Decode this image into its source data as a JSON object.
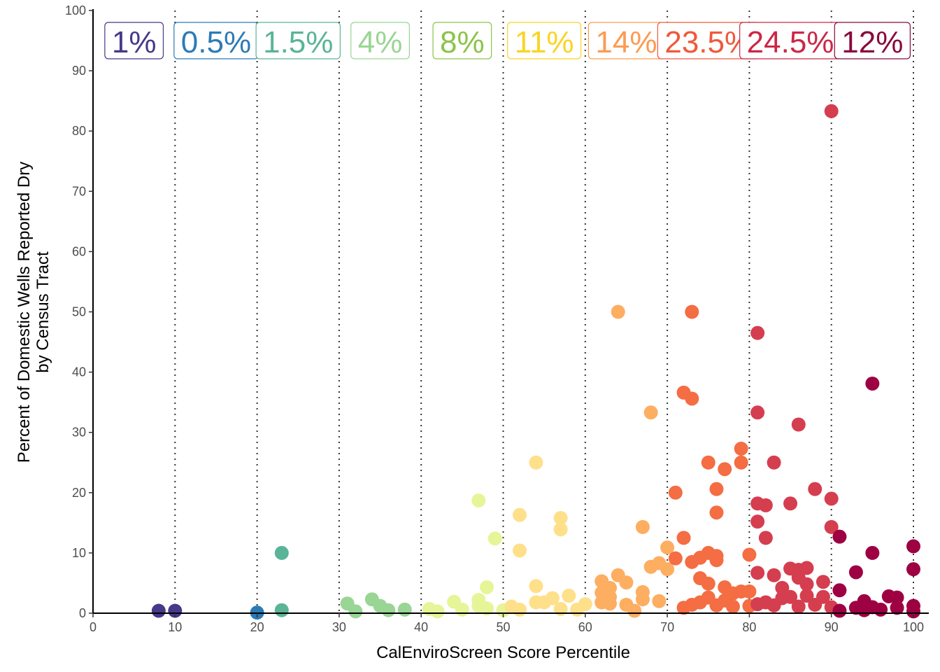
{
  "chart_data": {
    "type": "scatter",
    "title": "",
    "xlabel": "CalEnviroScreen Score Percentile",
    "ylabel_lines": [
      "Percent of Domestic Wells Reported Dry",
      "by Census Tract"
    ],
    "xlim": [
      0,
      100
    ],
    "ylim": [
      0,
      100
    ],
    "x_ticks": [
      0,
      10,
      20,
      30,
      40,
      50,
      60,
      70,
      80,
      90,
      100
    ],
    "y_ticks": [
      0,
      10,
      20,
      30,
      40,
      50,
      60,
      70,
      80,
      90,
      100
    ],
    "x_tick_labels": [
      "0",
      "10",
      "20",
      "30",
      "40",
      "50",
      "60",
      "70",
      "80",
      "90",
      "100"
    ],
    "y_tick_labels": [
      "0",
      "10",
      "20",
      "30",
      "40",
      "50",
      "60",
      "70",
      "80",
      "90",
      "100"
    ],
    "grid": false,
    "decile_boundaries": [
      10,
      20,
      30,
      40,
      50,
      60,
      70,
      80,
      90,
      100
    ],
    "band_labels": [
      {
        "text": "1%",
        "x": 5,
        "color": "#46398a"
      },
      {
        "text": "0.5%",
        "x": 15,
        "color": "#2c7bb6"
      },
      {
        "text": "1.5%",
        "x": 25,
        "color": "#5ab497"
      },
      {
        "text": "4%",
        "x": 35,
        "color": "#99d594"
      },
      {
        "text": "8%",
        "x": 45,
        "color": "#8bc34a"
      },
      {
        "text": "11%",
        "x": 55,
        "color": "#f9d423"
      },
      {
        "text": "14%",
        "x": 65,
        "color": "#fc9b52"
      },
      {
        "text": "23.5%",
        "x": 75,
        "color": "#ee5a3a"
      },
      {
        "text": "24.5%",
        "x": 85,
        "color": "#cc2746"
      },
      {
        "text": "12%",
        "x": 95,
        "color": "#880a3c"
      }
    ],
    "series": [
      {
        "color": "#46398a",
        "points": [
          [
            8,
            0.4
          ],
          [
            10,
            0.4
          ]
        ]
      },
      {
        "color": "#2c7bb6",
        "points": [
          [
            20,
            0.1
          ]
        ]
      },
      {
        "color": "#5ab497",
        "points": [
          [
            23,
            10
          ],
          [
            23,
            0.5
          ]
        ]
      },
      {
        "color": "#99d594",
        "points": [
          [
            31,
            1.6
          ],
          [
            32,
            0.3
          ],
          [
            34,
            2.3
          ],
          [
            35,
            1.2
          ],
          [
            36,
            0.5
          ],
          [
            38,
            0.6
          ]
        ]
      },
      {
        "color": "#e6f598",
        "points": [
          [
            41,
            0.7
          ],
          [
            42,
            0.3
          ],
          [
            44,
            1.9
          ],
          [
            45,
            0.6
          ],
          [
            47,
            18.7
          ],
          [
            47,
            2.2
          ],
          [
            47,
            1.2
          ],
          [
            48,
            4.3
          ],
          [
            48,
            0.8
          ],
          [
            49,
            12.4
          ],
          [
            50,
            0.5
          ]
        ]
      },
      {
        "color": "#fee08b",
        "points": [
          [
            51,
            1.1
          ],
          [
            52,
            16.3
          ],
          [
            52,
            10.4
          ],
          [
            52,
            0.6
          ],
          [
            54,
            25
          ],
          [
            54,
            4.5
          ],
          [
            54,
            1.8
          ],
          [
            55,
            1.8
          ],
          [
            56,
            2.5
          ],
          [
            57,
            15.8
          ],
          [
            57,
            13.9
          ],
          [
            57,
            0.7
          ],
          [
            58,
            2.9
          ],
          [
            59,
            0.6
          ],
          [
            60,
            1.5
          ]
        ]
      },
      {
        "color": "#fdae61",
        "points": [
          [
            62,
            5.3
          ],
          [
            62,
            3.4
          ],
          [
            62,
            1.8
          ],
          [
            63,
            4.2
          ],
          [
            63,
            2.7
          ],
          [
            63,
            1.6
          ],
          [
            64,
            50
          ],
          [
            64,
            6.3
          ],
          [
            65,
            5.1
          ],
          [
            65,
            1.4
          ],
          [
            66,
            0.4
          ],
          [
            67,
            14.3
          ],
          [
            67,
            3.5
          ],
          [
            67,
            2.3
          ],
          [
            68,
            33.3
          ],
          [
            68,
            7.7
          ],
          [
            69,
            8.3
          ],
          [
            69,
            2.0
          ],
          [
            70,
            10.9
          ],
          [
            70,
            7.3
          ]
        ]
      },
      {
        "color": "#f46d43",
        "points": [
          [
            71,
            20
          ],
          [
            71,
            9.1
          ],
          [
            72,
            36.6
          ],
          [
            72,
            12.5
          ],
          [
            72,
            0.9
          ],
          [
            73,
            50
          ],
          [
            73,
            35.6
          ],
          [
            73,
            8.5
          ],
          [
            73,
            1.4
          ],
          [
            74,
            9.2
          ],
          [
            74,
            5.8
          ],
          [
            74,
            1.8
          ],
          [
            75,
            25
          ],
          [
            75,
            10
          ],
          [
            75,
            4.9
          ],
          [
            75,
            2.6
          ],
          [
            76,
            20.6
          ],
          [
            76,
            16.7
          ],
          [
            76,
            9.5
          ],
          [
            76,
            8.8
          ],
          [
            76,
            1.3
          ],
          [
            77,
            23.9
          ],
          [
            77,
            4.3
          ],
          [
            77,
            2.1
          ],
          [
            78,
            3.3
          ],
          [
            78,
            1.1
          ],
          [
            79,
            27.3
          ],
          [
            79,
            25
          ],
          [
            79,
            3.6
          ],
          [
            80,
            9.7
          ],
          [
            80,
            3.6
          ],
          [
            80,
            1.2
          ]
        ]
      },
      {
        "color": "#d53e4f",
        "points": [
          [
            81,
            46.5
          ],
          [
            81,
            33.3
          ],
          [
            81,
            18.2
          ],
          [
            81,
            15.2
          ],
          [
            81,
            6.7
          ],
          [
            81,
            1.5
          ],
          [
            82,
            17.9
          ],
          [
            82,
            12.5
          ],
          [
            82,
            1.8
          ],
          [
            83,
            25
          ],
          [
            83,
            6.3
          ],
          [
            83,
            1.3
          ],
          [
            84,
            4.2
          ],
          [
            84,
            2.5
          ],
          [
            85,
            18.2
          ],
          [
            85,
            7.4
          ],
          [
            85,
            2.7
          ],
          [
            86,
            31.3
          ],
          [
            86,
            7.2
          ],
          [
            86,
            5.9
          ],
          [
            86,
            1.1
          ],
          [
            87,
            7.5
          ],
          [
            87,
            4.8
          ],
          [
            87,
            2.9
          ],
          [
            88,
            20.6
          ],
          [
            88,
            1.4
          ],
          [
            89,
            5.2
          ],
          [
            89,
            2.7
          ],
          [
            90,
            83.3
          ],
          [
            90,
            19
          ],
          [
            90,
            14.3
          ],
          [
            90,
            1.0
          ]
        ]
      },
      {
        "color": "#9e0142",
        "points": [
          [
            91,
            12.7
          ],
          [
            91,
            3.8
          ],
          [
            91,
            0.4
          ],
          [
            93,
            6.8
          ],
          [
            93,
            0.9
          ],
          [
            94,
            2.0
          ],
          [
            94,
            0.5
          ],
          [
            95,
            38.1
          ],
          [
            95,
            10.0
          ],
          [
            95,
            1.0
          ],
          [
            96,
            0.6
          ],
          [
            97,
            2.8
          ],
          [
            98,
            2.6
          ],
          [
            98,
            0.9
          ],
          [
            100,
            11.1
          ],
          [
            100,
            7.3
          ],
          [
            100,
            1.2
          ],
          [
            100,
            0.3
          ]
        ]
      }
    ]
  }
}
